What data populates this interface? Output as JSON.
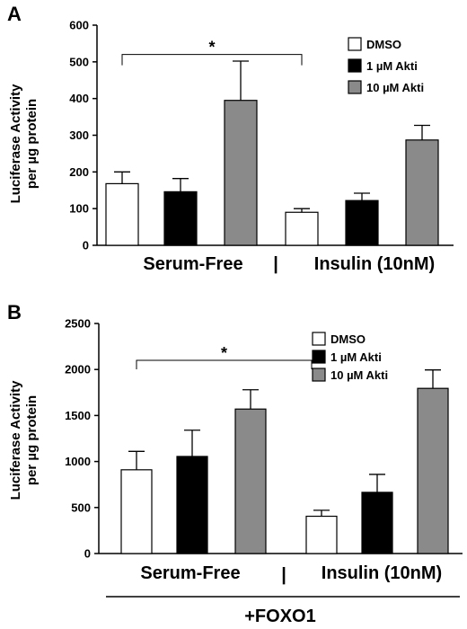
{
  "chart_data": [
    {
      "panel_label": "A",
      "type": "bar",
      "ylabel_lines": [
        "Luciferase Activity",
        "per µg protein"
      ],
      "ylim": [
        0,
        600
      ],
      "yticks": [
        0,
        100,
        200,
        300,
        400,
        500,
        600
      ],
      "groups": [
        "Serum-Free",
        "Insulin (10nM)"
      ],
      "divider": "|",
      "series": [
        {
          "name": "DMSO",
          "color": "#ffffff",
          "values": [
            168,
            90
          ],
          "errors": [
            32,
            10
          ]
        },
        {
          "name": "1 µM Akti",
          "color": "#000000",
          "values": [
            146,
            122
          ],
          "errors": [
            36,
            20
          ]
        },
        {
          "name": "10 µM Akti",
          "color": "#8a8a8a",
          "values": [
            395,
            287
          ],
          "errors": [
            107,
            40
          ]
        }
      ],
      "significance": {
        "label": "*",
        "between": [
          "Serum-Free DMSO",
          "Insulin (10nM) DMSO"
        ],
        "y": 520
      },
      "legend_position": "top-right"
    },
    {
      "panel_label": "B",
      "type": "bar",
      "ylabel_lines": [
        "Luciferase Activity",
        "per µg protein"
      ],
      "ylim": [
        0,
        2500
      ],
      "yticks": [
        0,
        500,
        1000,
        1500,
        2000,
        2500
      ],
      "groups": [
        "Serum-Free",
        "Insulin (10nM)"
      ],
      "divider": "|",
      "series": [
        {
          "name": "DMSO",
          "color": "#ffffff",
          "values": [
            910,
            405
          ],
          "errors": [
            200,
            65
          ]
        },
        {
          "name": "1 µM Akti",
          "color": "#000000",
          "values": [
            1055,
            665
          ],
          "errors": [
            285,
            195
          ]
        },
        {
          "name": "10 µM Akti",
          "color": "#8a8a8a",
          "values": [
            1570,
            1795
          ],
          "errors": [
            210,
            200
          ]
        }
      ],
      "significance": {
        "label": "*",
        "between": [
          "Serum-Free DMSO",
          "Insulin (10nM) DMSO"
        ],
        "y": 2100
      },
      "legend_position": "top-right",
      "footer": "+FOXO1"
    }
  ]
}
